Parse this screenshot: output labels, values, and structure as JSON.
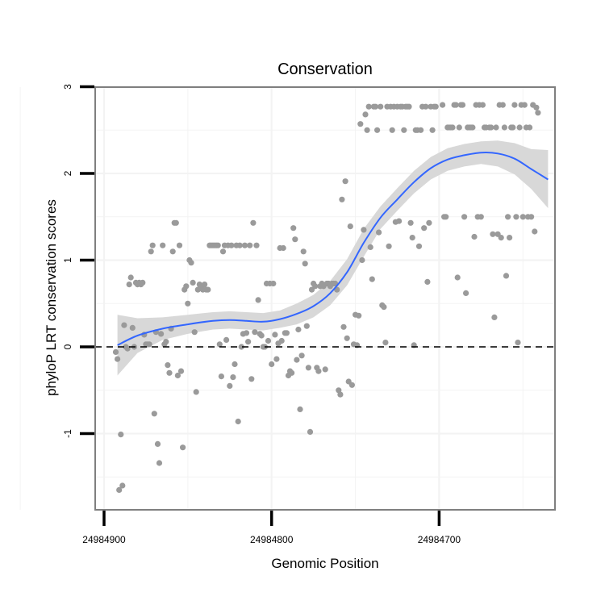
{
  "chart_data": {
    "type": "scatter",
    "title": "Conservation",
    "xlabel": "Genomic Position",
    "ylabel": "phyloP LRT conservation scores",
    "x_reversed": true,
    "xlim": [
      24984910,
      24984635
    ],
    "ylim": [
      -1.85,
      3.0
    ],
    "x_ticks": [
      24984900,
      24984800,
      24984700
    ],
    "x_tick_labels": [
      "24984900",
      "24984800",
      "24984700"
    ],
    "y_ticks": [
      3,
      2,
      1,
      0,
      -1
    ],
    "y_tick_labels": [
      "3",
      "2",
      "1",
      "0",
      "-1"
    ],
    "grid": true,
    "reference_line": {
      "y": 0,
      "style": "dashed"
    },
    "colors": {
      "points": "#9a9a9a",
      "smooth": "#3366ff",
      "ribbon": "#d6d6d6",
      "grid": "#f3f3f3",
      "border": "#7f7f7f",
      "refline": "#000000"
    },
    "points": [
      [
        24984893,
        -0.06
      ],
      [
        24984892,
        -0.14
      ],
      [
        24984891,
        -1.65
      ],
      [
        24984890,
        -1.01
      ],
      [
        24984889,
        -1.6
      ],
      [
        24984888,
        0.25
      ],
      [
        24984887,
        0.0
      ],
      [
        24984886,
        -0.02
      ],
      [
        24984885,
        0.72
      ],
      [
        24984884,
        0.8
      ],
      [
        24984883,
        0.22
      ],
      [
        24984882,
        0.0
      ],
      [
        24984881,
        0.74
      ],
      [
        24984880,
        0.72
      ],
      [
        24984879,
        0.74
      ],
      [
        24984878,
        0.72
      ],
      [
        24984877,
        0.74
      ],
      [
        24984876,
        0.14
      ],
      [
        24984875,
        0.03
      ],
      [
        24984874,
        0.03
      ],
      [
        24984873,
        0.03
      ],
      [
        24984872,
        1.1
      ],
      [
        24984871,
        1.17
      ],
      [
        24984870,
        -0.77
      ],
      [
        24984869,
        0.17
      ],
      [
        24984868,
        -1.12
      ],
      [
        24984867,
        -1.34
      ],
      [
        24984866,
        0.15
      ],
      [
        24984865,
        1.17
      ],
      [
        24984864,
        0.03
      ],
      [
        24984863,
        0.06
      ],
      [
        24984862,
        -0.21
      ],
      [
        24984861,
        -0.3
      ],
      [
        24984860,
        0.21
      ],
      [
        24984859,
        1.1
      ],
      [
        24984858,
        1.43
      ],
      [
        24984857,
        1.43
      ],
      [
        24984856,
        -0.33
      ],
      [
        24984855,
        1.17
      ],
      [
        24984854,
        -0.28
      ],
      [
        24984853,
        -1.16
      ],
      [
        24984852,
        0.66
      ],
      [
        24984851,
        0.7
      ],
      [
        24984850,
        0.5
      ],
      [
        24984849,
        1.0
      ],
      [
        24984848,
        0.97
      ],
      [
        24984847,
        0.74
      ],
      [
        24984846,
        0.17
      ],
      [
        24984845,
        -0.52
      ],
      [
        24984844,
        0.66
      ],
      [
        24984843,
        0.72
      ],
      [
        24984842,
        0.7
      ],
      [
        24984841,
        0.66
      ],
      [
        24984840,
        0.72
      ],
      [
        24984839,
        0.66
      ],
      [
        24984838,
        0.66
      ],
      [
        24984837,
        1.17
      ],
      [
        24984836,
        1.17
      ],
      [
        24984835,
        1.17
      ],
      [
        24984834,
        1.17
      ],
      [
        24984833,
        1.17
      ],
      [
        24984832,
        1.17
      ],
      [
        24984831,
        0.03
      ],
      [
        24984830,
        -0.34
      ],
      [
        24984829,
        1.1
      ],
      [
        24984828,
        1.17
      ],
      [
        24984827,
        0.08
      ],
      [
        24984826,
        1.17
      ],
      [
        24984825,
        -0.45
      ],
      [
        24984824,
        1.17
      ],
      [
        24984823,
        -0.35
      ],
      [
        24984822,
        -0.2
      ],
      [
        24984821,
        1.17
      ],
      [
        24984820,
        -0.86
      ],
      [
        24984819,
        1.17
      ],
      [
        24984818,
        0.0
      ],
      [
        24984817,
        0.15
      ],
      [
        24984816,
        1.17
      ],
      [
        24984815,
        0.16
      ],
      [
        24984814,
        0.06
      ],
      [
        24984813,
        1.17
      ],
      [
        24984812,
        -0.37
      ],
      [
        24984811,
        1.43
      ],
      [
        24984810,
        0.17
      ],
      [
        24984809,
        1.17
      ],
      [
        24984808,
        0.54
      ],
      [
        24984807,
        0.15
      ],
      [
        24984806,
        0.13
      ],
      [
        24984805,
        0.0
      ],
      [
        24984804,
        0.0
      ],
      [
        24984803,
        0.73
      ],
      [
        24984802,
        0.07
      ],
      [
        24984801,
        0.73
      ],
      [
        24984800,
        -0.2
      ],
      [
        24984799,
        0.73
      ],
      [
        24984798,
        0.14
      ],
      [
        24984797,
        -0.14
      ],
      [
        24984796,
        0.04
      ],
      [
        24984795,
        1.14
      ],
      [
        24984794,
        0.07
      ],
      [
        24984793,
        1.14
      ],
      [
        24984792,
        0.16
      ],
      [
        24984791,
        0.16
      ],
      [
        24984790,
        -0.33
      ],
      [
        24984789,
        -0.28
      ],
      [
        24984788,
        -0.3
      ],
      [
        24984787,
        1.37
      ],
      [
        24984786,
        1.24
      ],
      [
        24984785,
        -0.15
      ],
      [
        24984784,
        0.2
      ],
      [
        24984783,
        -0.72
      ],
      [
        24984782,
        -0.1
      ],
      [
        24984781,
        1.1
      ],
      [
        24984780,
        0.96
      ],
      [
        24984779,
        0.24
      ],
      [
        24984778,
        -0.24
      ],
      [
        24984777,
        -0.98
      ],
      [
        24984776,
        0.66
      ],
      [
        24984775,
        0.73
      ],
      [
        24984774,
        0.7
      ],
      [
        24984773,
        -0.24
      ],
      [
        24984772,
        -0.28
      ],
      [
        24984771,
        0.7
      ],
      [
        24984770,
        0.73
      ],
      [
        24984769,
        0.7
      ],
      [
        24984768,
        -0.26
      ],
      [
        24984767,
        0.73
      ],
      [
        24984766,
        0.73
      ],
      [
        24984765,
        0.7
      ],
      [
        24984764,
        0.73
      ],
      [
        24984763,
        0.73
      ],
      [
        24984762,
        0.73
      ],
      [
        24984761,
        0.66
      ],
      [
        24984760,
        -0.5
      ],
      [
        24984759,
        -0.55
      ],
      [
        24984758,
        1.7
      ],
      [
        24984757,
        0.23
      ],
      [
        24984756,
        1.91
      ],
      [
        24984755,
        0.1
      ],
      [
        24984754,
        -0.4
      ],
      [
        24984753,
        1.39
      ],
      [
        24984752,
        -0.44
      ],
      [
        24984751,
        0.03
      ],
      [
        24984750,
        0.37
      ],
      [
        24984749,
        0.02
      ],
      [
        24984748,
        0.36
      ],
      [
        24984747,
        2.57
      ],
      [
        24984746,
        1.0
      ],
      [
        24984745,
        1.35
      ],
      [
        24984744,
        2.68
      ],
      [
        24984743,
        2.5
      ],
      [
        24984742,
        2.77
      ],
      [
        24984741,
        1.15
      ],
      [
        24984740,
        0.78
      ],
      [
        24984739,
        2.77
      ],
      [
        24984738,
        2.77
      ],
      [
        24984737,
        2.5
      ],
      [
        24984736,
        1.32
      ],
      [
        24984735,
        2.77
      ],
      [
        24984734,
        0.48
      ],
      [
        24984733,
        0.46
      ],
      [
        24984732,
        0.05
      ],
      [
        24984731,
        2.77
      ],
      [
        24984730,
        1.16
      ],
      [
        24984729,
        2.77
      ],
      [
        24984728,
        2.5
      ],
      [
        24984727,
        2.77
      ],
      [
        24984726,
        1.44
      ],
      [
        24984725,
        2.77
      ],
      [
        24984724,
        1.45
      ],
      [
        24984723,
        2.77
      ],
      [
        24984722,
        2.77
      ],
      [
        24984721,
        2.5
      ],
      [
        24984720,
        2.77
      ],
      [
        24984719,
        2.77
      ],
      [
        24984718,
        2.77
      ],
      [
        24984717,
        1.43
      ],
      [
        24984716,
        1.26
      ],
      [
        24984715,
        0.02
      ],
      [
        24984714,
        2.5
      ],
      [
        24984713,
        2.5
      ],
      [
        24984712,
        1.16
      ],
      [
        24984711,
        2.5
      ],
      [
        24984710,
        2.77
      ],
      [
        24984709,
        1.37
      ],
      [
        24984708,
        2.77
      ],
      [
        24984707,
        0.75
      ],
      [
        24984706,
        1.43
      ],
      [
        24984705,
        2.77
      ],
      [
        24984704,
        2.5
      ],
      [
        24984703,
        2.77
      ],
      [
        24984702,
        2.77
      ],
      [
        24984698,
        2.79
      ],
      [
        24984697,
        1.5
      ],
      [
        24984696,
        1.5
      ],
      [
        24984695,
        2.53
      ],
      [
        24984694,
        2.53
      ],
      [
        24984693,
        2.53
      ],
      [
        24984692,
        2.53
      ],
      [
        24984691,
        2.79
      ],
      [
        24984690,
        2.79
      ],
      [
        24984689,
        0.8
      ],
      [
        24984688,
        2.53
      ],
      [
        24984687,
        2.79
      ],
      [
        24984686,
        2.79
      ],
      [
        24984685,
        1.5
      ],
      [
        24984684,
        0.62
      ],
      [
        24984683,
        2.53
      ],
      [
        24984682,
        2.53
      ],
      [
        24984681,
        2.53
      ],
      [
        24984680,
        2.53
      ],
      [
        24984679,
        1.27
      ],
      [
        24984678,
        2.79
      ],
      [
        24984677,
        1.5
      ],
      [
        24984676,
        2.79
      ],
      [
        24984675,
        1.5
      ],
      [
        24984674,
        2.79
      ],
      [
        24984673,
        2.53
      ],
      [
        24984672,
        2.53
      ],
      [
        24984670,
        2.53
      ],
      [
        24984669,
        2.53
      ],
      [
        24984668,
        1.3
      ],
      [
        24984667,
        0.34
      ],
      [
        24984666,
        2.53
      ],
      [
        24984665,
        1.3
      ],
      [
        24984664,
        2.79
      ],
      [
        24984663,
        1.26
      ],
      [
        24984662,
        2.79
      ],
      [
        24984661,
        2.53
      ],
      [
        24984660,
        0.82
      ],
      [
        24984659,
        1.5
      ],
      [
        24984658,
        1.26
      ],
      [
        24984657,
        2.53
      ],
      [
        24984656,
        2.53
      ],
      [
        24984655,
        2.79
      ],
      [
        24984654,
        1.5
      ],
      [
        24984653,
        0.05
      ],
      [
        24984652,
        2.53
      ],
      [
        24984651,
        2.79
      ],
      [
        24984650,
        1.5
      ],
      [
        24984649,
        2.79
      ],
      [
        24984648,
        2.53
      ],
      [
        24984647,
        1.5
      ],
      [
        24984646,
        2.53
      ],
      [
        24984645,
        1.5
      ],
      [
        24984644,
        2.79
      ],
      [
        24984643,
        1.33
      ],
      [
        24984642,
        2.76
      ],
      [
        24984641,
        2.7
      ]
    ],
    "smooth": [
      [
        24984892,
        0.02,
        0.37,
        -0.33
      ],
      [
        24984880,
        0.13,
        0.33,
        -0.07
      ],
      [
        24984865,
        0.21,
        0.34,
        0.08
      ],
      [
        24984850,
        0.26,
        0.37,
        0.15
      ],
      [
        24984835,
        0.3,
        0.4,
        0.2
      ],
      [
        24984825,
        0.31,
        0.41,
        0.21
      ],
      [
        24984815,
        0.3,
        0.4,
        0.2
      ],
      [
        24984805,
        0.29,
        0.39,
        0.19
      ],
      [
        24984795,
        0.32,
        0.42,
        0.22
      ],
      [
        24984785,
        0.38,
        0.5,
        0.26
      ],
      [
        24984775,
        0.47,
        0.6,
        0.34
      ],
      [
        24984765,
        0.62,
        0.76,
        0.48
      ],
      [
        24984755,
        0.86,
        1.01,
        0.71
      ],
      [
        24984745,
        1.2,
        1.36,
        1.04
      ],
      [
        24984735,
        1.49,
        1.62,
        1.36
      ],
      [
        24984725,
        1.7,
        1.83,
        1.57
      ],
      [
        24984715,
        1.9,
        2.03,
        1.77
      ],
      [
        24984705,
        2.06,
        2.19,
        1.93
      ],
      [
        24984695,
        2.16,
        2.29,
        2.03
      ],
      [
        24984685,
        2.21,
        2.34,
        2.08
      ],
      [
        24984675,
        2.24,
        2.37,
        2.11
      ],
      [
        24984665,
        2.23,
        2.38,
        2.08
      ],
      [
        24984655,
        2.17,
        2.35,
        1.99
      ],
      [
        24984645,
        2.05,
        2.28,
        1.82
      ],
      [
        24984635,
        1.93,
        2.27,
        1.6
      ]
    ]
  }
}
